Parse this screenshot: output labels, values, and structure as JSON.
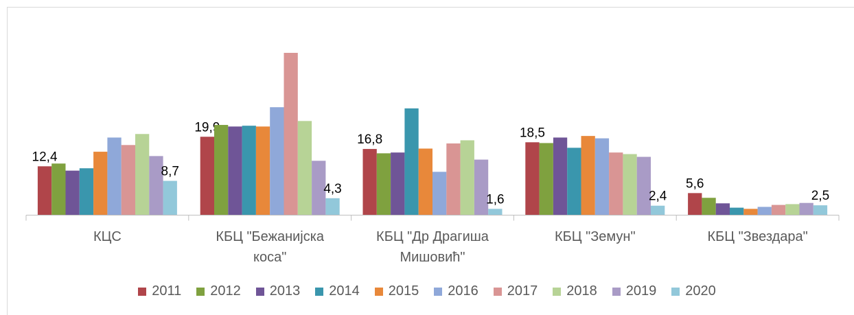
{
  "chart_data": {
    "type": "bar",
    "categories": [
      "КЦС",
      "КБЦ \"Бежанијска коса\"",
      "КБЦ \"Др Драгиша Мишовић\"",
      "КБЦ \"Земун\"",
      "КБЦ \"Звездара\""
    ],
    "series": [
      {
        "name": "2011",
        "color": "#b0454a",
        "values": [
          12.4,
          19.9,
          16.8,
          18.5,
          5.6
        ],
        "value_labels": [
          "12,4",
          "19,9",
          "16,8",
          "18,5",
          "5,6"
        ]
      },
      {
        "name": "2012",
        "color": "#7fa13f",
        "values": [
          13.1,
          22.9,
          15.7,
          18.3,
          4.4
        ]
      },
      {
        "name": "2013",
        "color": "#6f5597",
        "values": [
          11.3,
          22.5,
          15.9,
          19.7,
          3.0
        ]
      },
      {
        "name": "2014",
        "color": "#3a96ad",
        "values": [
          11.9,
          22.7,
          27.1,
          17.1,
          1.9
        ]
      },
      {
        "name": "2015",
        "color": "#e8883a",
        "values": [
          16.1,
          22.5,
          16.9,
          20.1,
          1.6
        ]
      },
      {
        "name": "2016",
        "color": "#8fa8d9",
        "values": [
          19.7,
          27.4,
          11.0,
          19.5,
          2.1
        ]
      },
      {
        "name": "2017",
        "color": "#d99594",
        "values": [
          17.8,
          41.2,
          18.2,
          15.9,
          2.6
        ]
      },
      {
        "name": "2018",
        "color": "#b7d396",
        "values": [
          20.6,
          23.9,
          19.0,
          15.5,
          2.8
        ]
      },
      {
        "name": "2019",
        "color": "#a99bc6",
        "values": [
          15.0,
          13.8,
          14.1,
          14.8,
          3.1
        ]
      },
      {
        "name": "2020",
        "color": "#92c8da",
        "values": [
          8.7,
          4.3,
          1.6,
          2.4,
          2.5
        ],
        "value_labels": [
          "8,7",
          "4,3",
          "1,6",
          "2,4",
          "2,5"
        ]
      }
    ]
  }
}
